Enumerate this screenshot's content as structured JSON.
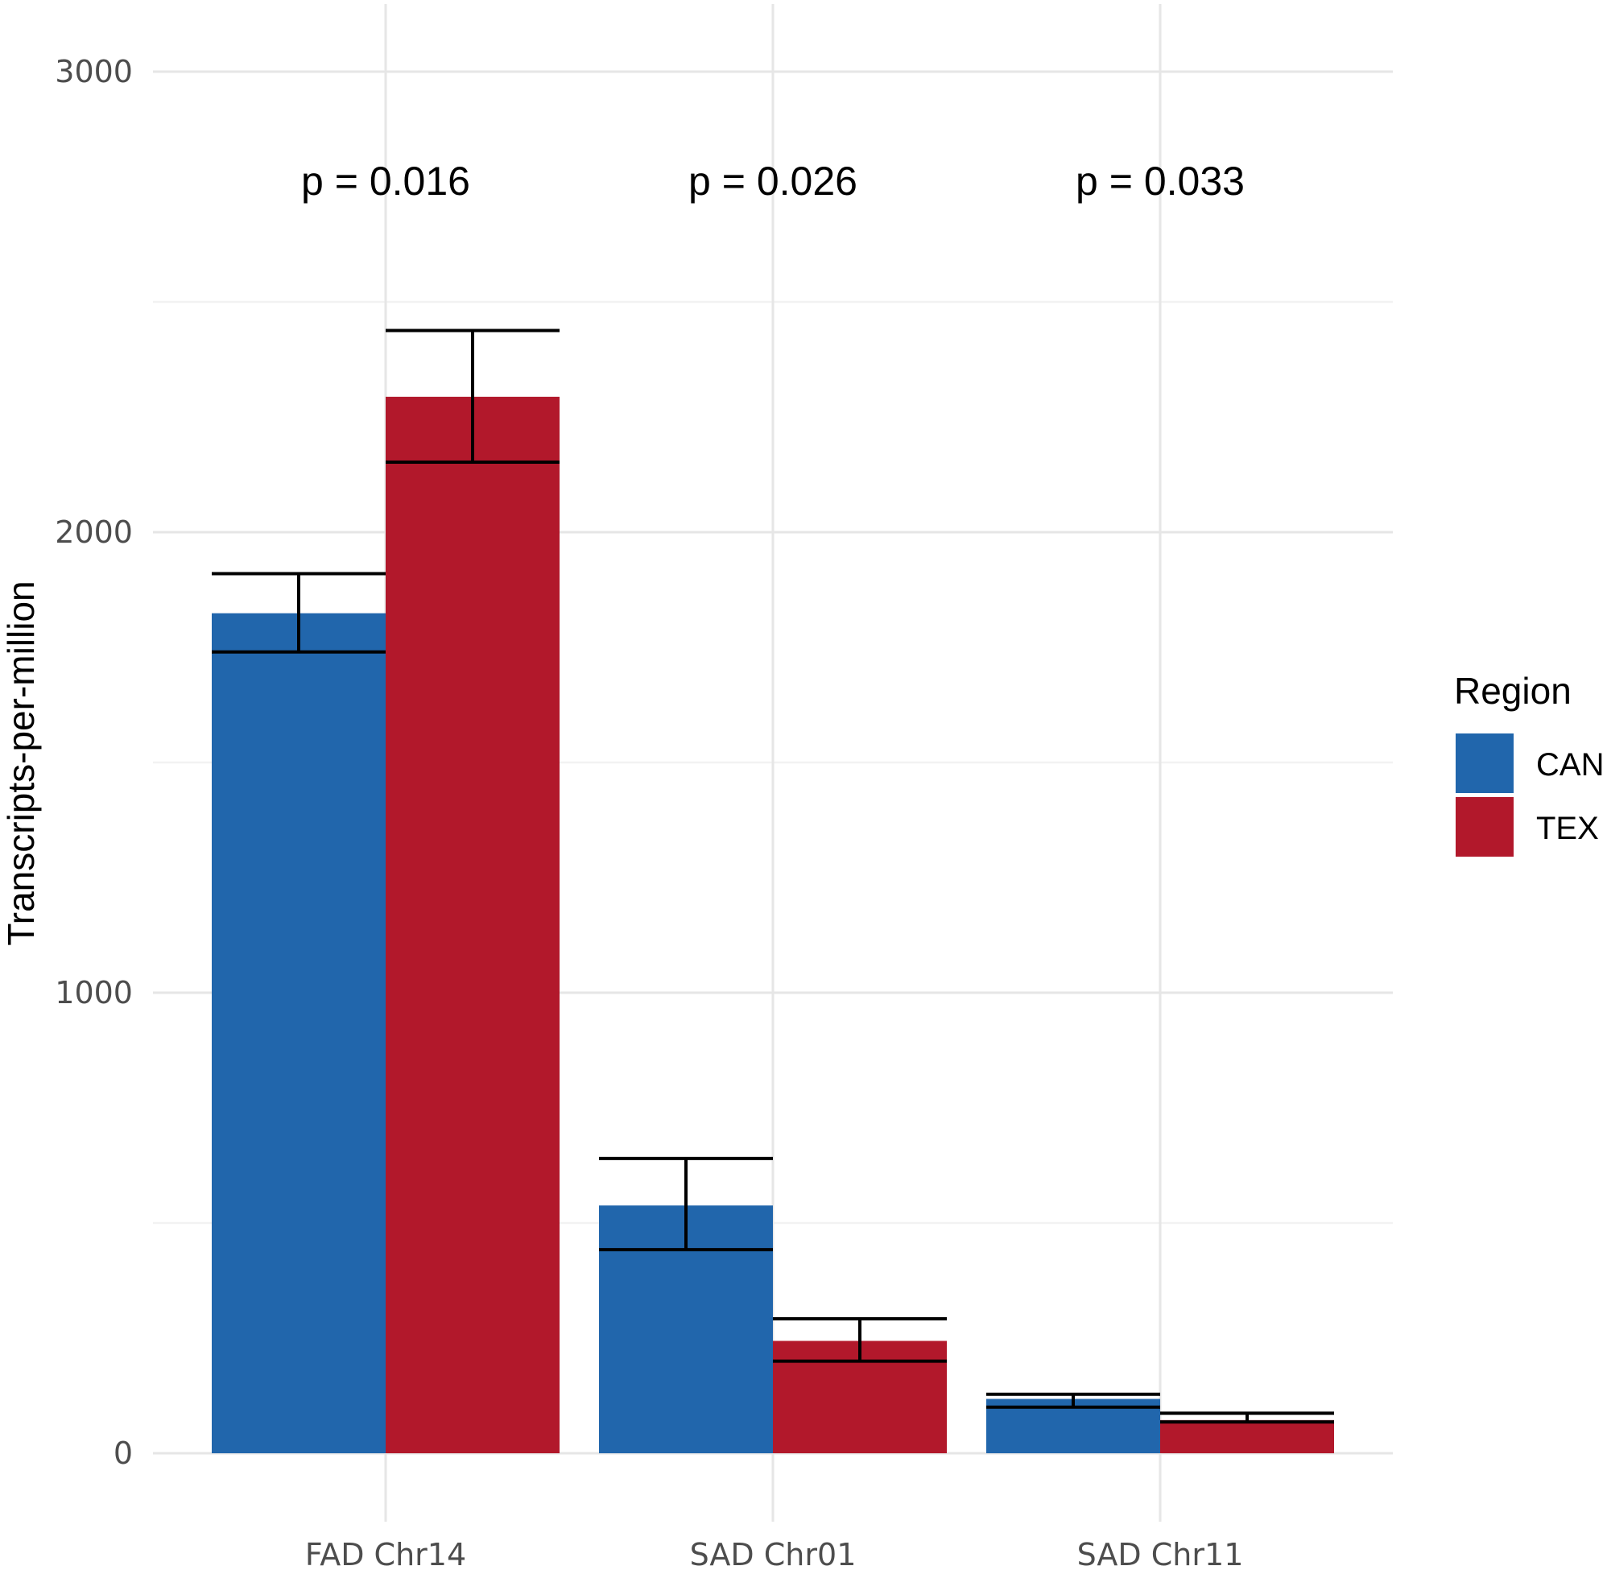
{
  "chart_data": {
    "type": "bar",
    "categories": [
      "FAD Chr14",
      "SAD Chr01",
      "SAD Chr11"
    ],
    "series": [
      {
        "name": "CAN",
        "color": "#2166ac",
        "values": [
          1824,
          538,
          118
        ],
        "error_low": [
          1740,
          442,
          100
        ],
        "error_high": [
          1910,
          640,
          128
        ]
      },
      {
        "name": "TEX",
        "color": "#b2182b",
        "values": [
          2294,
          244,
          72
        ],
        "error_low": [
          2152,
          200,
          68
        ],
        "error_high": [
          2438,
          292,
          87
        ]
      }
    ],
    "annotations": [
      "p = 0.016",
      "p = 0.026",
      "p = 0.033"
    ],
    "title": "",
    "xlabel": "",
    "ylabel": "Transcripts-per-million",
    "ylim": [
      0,
      3000
    ],
    "yticks": [
      0,
      1000,
      2000,
      3000
    ],
    "y_tick_labels": [
      "0",
      "1000",
      "2000",
      "3000"
    ],
    "grid": true,
    "legend": {
      "title": "Region",
      "position": "right"
    }
  }
}
